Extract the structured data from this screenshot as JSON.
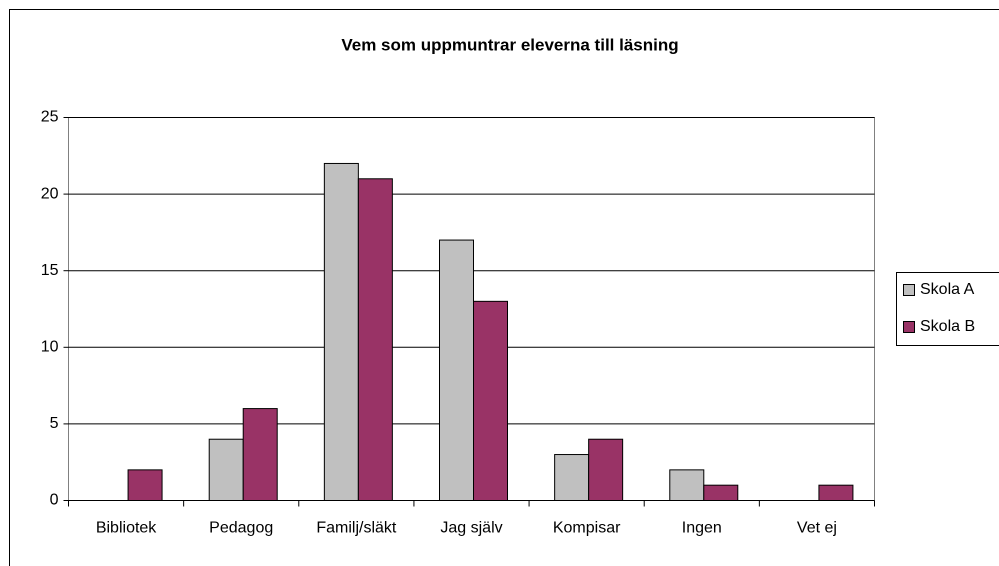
{
  "chart_data": {
    "type": "bar",
    "title": "Vem som uppmuntrar eleverna till läsning",
    "categories": [
      "Bibliotek",
      "Pedagog",
      "Familj/släkt",
      "Jag själv",
      "Kompisar",
      "Ingen",
      "Vet ej"
    ],
    "series": [
      {
        "name": "Skola A",
        "color": "#c0c0c0",
        "values": [
          0,
          4,
          22,
          17,
          3,
          2,
          0
        ]
      },
      {
        "name": "Skola B",
        "color": "#993366",
        "values": [
          2,
          6,
          21,
          13,
          4,
          1,
          1
        ]
      }
    ],
    "ylim": [
      0,
      25
    ],
    "yticks": [
      0,
      5,
      10,
      15,
      20,
      25
    ],
    "grid": true,
    "legend": "right"
  }
}
